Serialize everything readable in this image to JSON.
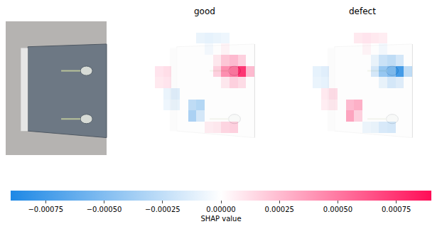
{
  "chart_data": {
    "type": "heatmap",
    "panels": [
      {
        "title": "good",
        "cells": [
          [
            0,
            0,
            0,
            0,
            0,
            0,
            0,
            0,
            0,
            0,
            0,
            0
          ],
          [
            0,
            0,
            0,
            0,
            0,
            -0.0001,
            -0.00012,
            -0.0001,
            -8e-05,
            0,
            0,
            0
          ],
          [
            0,
            0,
            0,
            0,
            0,
            0,
            -5e-05,
            0,
            5e-05,
            0,
            0,
            0
          ],
          [
            0,
            0,
            0,
            0,
            0,
            0,
            0,
            0.0001,
            0.00025,
            0.0003,
            0.0002,
            0
          ],
          [
            0.00012,
            0.00015,
            0,
            0,
            0,
            0,
            0,
            0.0002,
            0.0005,
            0.0006,
            0.0009,
            0.0003
          ],
          [
            0.0001,
            0.00012,
            0,
            0,
            0,
            0,
            0,
            0,
            0.0001,
            0.0002,
            0.00015,
            0
          ],
          [
            0,
            -0.0001,
            -0.00015,
            0,
            0,
            0,
            0,
            0,
            0,
            0,
            0,
            0
          ],
          [
            0,
            -8e-05,
            -0.0001,
            0,
            -0.0003,
            -0.00035,
            0,
            0,
            0,
            0,
            0,
            0
          ],
          [
            0,
            0,
            0,
            0,
            -0.0004,
            -0.0002,
            0,
            0,
            0,
            0,
            0,
            0
          ],
          [
            0,
            0,
            0,
            0,
            0,
            0,
            8e-05,
            0.0001,
            0.00018,
            0.0002,
            0,
            0
          ],
          [
            0,
            0,
            0,
            0,
            0,
            0,
            0,
            0,
            0,
            0,
            0,
            0
          ],
          [
            0,
            0,
            0,
            0,
            0,
            0,
            0,
            0,
            0,
            0,
            0,
            0
          ]
        ]
      },
      {
        "title": "defect",
        "cells": [
          [
            0,
            0,
            0,
            0,
            0,
            0,
            0,
            0,
            0,
            0,
            0,
            0
          ],
          [
            0,
            0,
            0,
            0,
            0,
            0.0001,
            0.00012,
            0.0001,
            8e-05,
            0,
            0,
            0
          ],
          [
            0,
            0,
            0,
            0,
            0,
            0,
            5e-05,
            0,
            -5e-05,
            0,
            0,
            0
          ],
          [
            0,
            0,
            0,
            0,
            0,
            0,
            0,
            -0.0001,
            -0.00025,
            -0.0003,
            -0.0002,
            0
          ],
          [
            -0.00012,
            -0.00015,
            0,
            0,
            0,
            0,
            0,
            -0.0002,
            -0.0005,
            -0.0006,
            -0.0009,
            -0.0003
          ],
          [
            -0.0001,
            -0.00012,
            0,
            0,
            0,
            0,
            0,
            0,
            -0.0001,
            -0.0002,
            -0.00015,
            0
          ],
          [
            0,
            0.0001,
            0.00015,
            0,
            0,
            0,
            0,
            0,
            0,
            0,
            0,
            0
          ],
          [
            0,
            8e-05,
            0.0001,
            0,
            0.0003,
            0.00035,
            0,
            0,
            0,
            0,
            0,
            0
          ],
          [
            0,
            0,
            0,
            0,
            0.0004,
            0.0002,
            0,
            0,
            0,
            0,
            0,
            0
          ],
          [
            0,
            0,
            0,
            0,
            0,
            0,
            -8e-05,
            -0.0001,
            -0.00018,
            -0.0002,
            0,
            0
          ],
          [
            0,
            0,
            0,
            0,
            0,
            0,
            0,
            0,
            0,
            0,
            0,
            0
          ],
          [
            0,
            0,
            0,
            0,
            0,
            0,
            0,
            0,
            0,
            0,
            0,
            0
          ]
        ]
      }
    ],
    "zlim": [
      -0.0009,
      0.0009
    ],
    "colorbar_ticks": [
      {
        "value": -0.00075,
        "label": "−0.00075"
      },
      {
        "value": -0.0005,
        "label": "−0.00050"
      },
      {
        "value": -0.00025,
        "label": "−0.00025"
      },
      {
        "value": 0,
        "label": "0.00000"
      },
      {
        "value": 0.00025,
        "label": "0.00025"
      },
      {
        "value": 0.0005,
        "label": "0.00050"
      },
      {
        "value": 0.00075,
        "label": "0.00075"
      }
    ],
    "colorbar_title": "SHAP value"
  }
}
